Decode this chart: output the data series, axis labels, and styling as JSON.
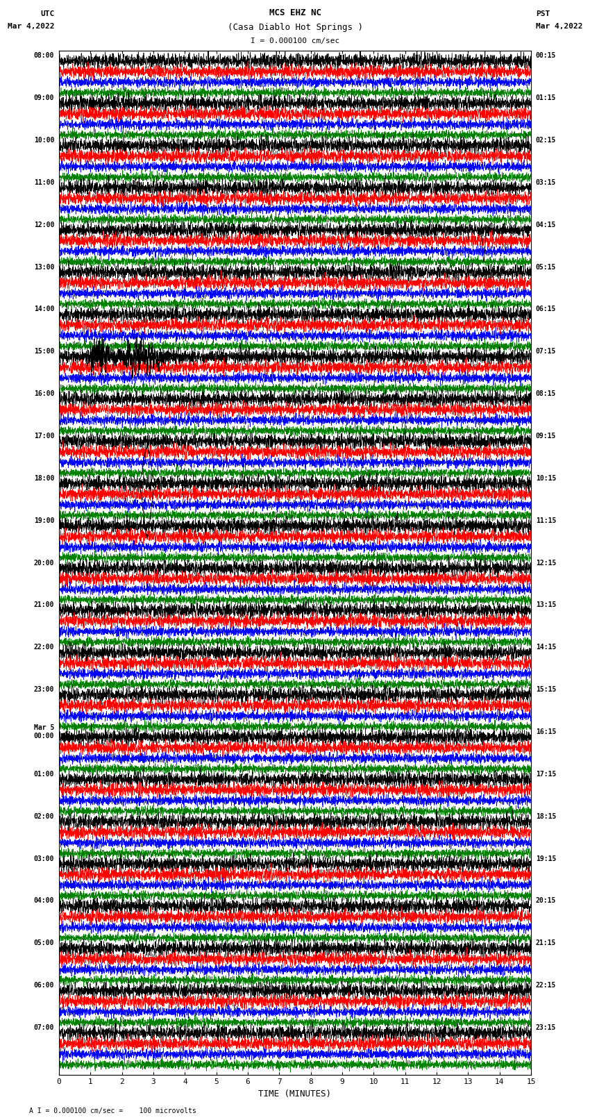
{
  "title_line1": "MCS EHZ NC",
  "title_line2": "(Casa Diablo Hot Springs )",
  "scale_label": "I = 0.000100 cm/sec",
  "left_label": "UTC",
  "left_date": "Mar 4,2022",
  "right_label": "PST",
  "right_date": "Mar 4,2022",
  "bottom_label": "TIME (MINUTES)",
  "footer_label": "A I = 0.000100 cm/sec =    100 microvolts",
  "utc_times_major": [
    "08:00",
    "09:00",
    "10:00",
    "11:00",
    "12:00",
    "13:00",
    "14:00",
    "15:00",
    "16:00",
    "17:00",
    "18:00",
    "19:00",
    "20:00",
    "21:00",
    "22:00",
    "23:00",
    "Mar 5\n00:00",
    "01:00",
    "02:00",
    "03:00",
    "04:00",
    "05:00",
    "06:00",
    "07:00"
  ],
  "pst_times_major": [
    "00:15",
    "01:15",
    "02:15",
    "03:15",
    "04:15",
    "05:15",
    "06:15",
    "07:15",
    "08:15",
    "09:15",
    "10:15",
    "11:15",
    "12:15",
    "13:15",
    "14:15",
    "15:15",
    "16:15",
    "17:15",
    "18:15",
    "19:15",
    "20:15",
    "21:15",
    "22:15",
    "23:15"
  ],
  "num_hours": 24,
  "traces_per_hour": 4,
  "colors": [
    "black",
    "red",
    "blue",
    "green"
  ],
  "x_min": 0,
  "x_max": 15,
  "x_ticks": [
    0,
    1,
    2,
    3,
    4,
    5,
    6,
    7,
    8,
    9,
    10,
    11,
    12,
    13,
    14,
    15
  ],
  "bg_color": "white",
  "noise_base": 0.3,
  "seed": 12345,
  "n_points": 3000
}
